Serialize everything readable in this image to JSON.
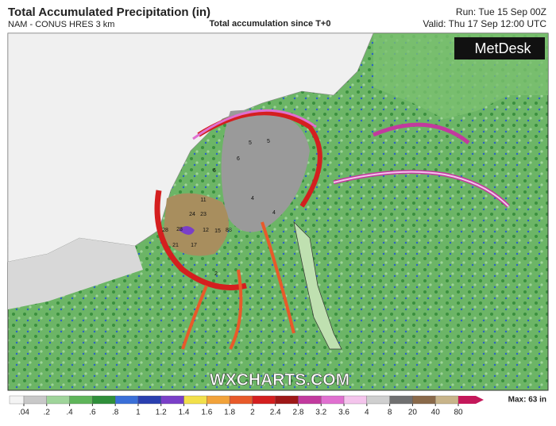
{
  "header": {
    "title": "Total Accumulated Precipitation (in)",
    "model": "NAM - CONUS HRES 3 km",
    "subtitle": "Total accumulation since T+0",
    "run": "Run: Tue 15 Sep 00Z",
    "valid": "Valid: Thu 17 Sep 12:00 UTC"
  },
  "logo": "MetDesk",
  "watermark": "WXCHARTS.COM",
  "map_values": [
    28,
    28,
    21,
    17,
    12,
    15,
    24,
    23,
    11,
    8,
    6,
    6,
    5,
    5,
    4,
    4,
    8,
    2
  ],
  "legend": {
    "ticks": [
      {
        "value": 0.04,
        "label": ".04"
      },
      {
        "value": 0.2,
        "label": ".2"
      },
      {
        "value": 0.4,
        "label": ".4"
      },
      {
        "value": 0.6,
        "label": ".6"
      },
      {
        "value": 0.8,
        "label": ".8"
      },
      1,
      1.2,
      1.4,
      1.6,
      1.8,
      2,
      2.4,
      2.8,
      3.2,
      3.6,
      4,
      8,
      20,
      40,
      80
    ],
    "colors": [
      "#f4f4f4",
      "#c8c8c8",
      "#9fd49a",
      "#5fb55a",
      "#2f8f3a",
      "#3a6fd8",
      "#2a3fb0",
      "#7a3fc8",
      "#f2e04a",
      "#f2a33a",
      "#e85a2a",
      "#d41f1f",
      "#9e1818",
      "#c23a9e",
      "#e070d0",
      "#f4c4ec",
      "#cfcfcf",
      "#707070",
      "#8a6a4a",
      "#c8b48a"
    ],
    "arrow_color": "#c4185a",
    "max": "Max: 63 in"
  }
}
